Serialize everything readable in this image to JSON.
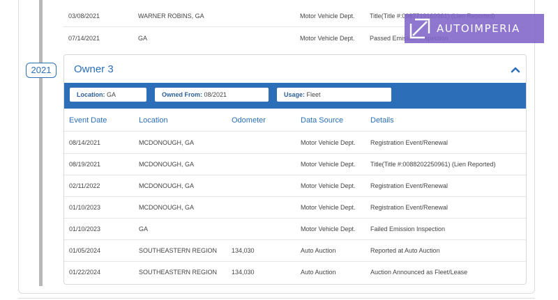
{
  "timeline": {
    "year": "2021"
  },
  "previous_rows": [
    {
      "date": "03/08/2021",
      "location": "WARNER ROBINS, GA",
      "odometer": "",
      "source": "Motor Vehicle Dept.",
      "details": "Title(Title #:0987719169961) (Lien Reported)"
    },
    {
      "date": "07/14/2021",
      "location": "GA",
      "odometer": "",
      "source": "Motor Vehicle Dept.",
      "details": "Passed Emission Inspection"
    }
  ],
  "owner": {
    "title": "Owner 3",
    "collapse_icon": "chevron-up-icon",
    "location_label": "Location:",
    "location_value": "GA",
    "owned_from_label": "Owned From:",
    "owned_from_value": "08/2021",
    "usage_label": "Usage:",
    "usage_value": "Fleet",
    "columns": [
      "Event Date",
      "Location",
      "Odometer",
      "Data Source",
      "Details"
    ],
    "rows": [
      {
        "date": "08/14/2021",
        "location": "MCDONOUGH, GA",
        "odometer": "",
        "source": "Motor Vehicle Dept.",
        "details": "Registration Event/Renewal"
      },
      {
        "date": "08/19/2021",
        "location": "MCDONOUGH, GA",
        "odometer": "",
        "source": "Motor Vehicle Dept.",
        "details": "Title(Title #:0088202250961) (Lien Reported)"
      },
      {
        "date": "02/11/2022",
        "location": "MCDONOUGH, GA",
        "odometer": "",
        "source": "Motor Vehicle Dept.",
        "details": "Registration Event/Renewal"
      },
      {
        "date": "01/10/2023",
        "location": "MCDONOUGH, GA",
        "odometer": "",
        "source": "Motor Vehicle Dept.",
        "details": "Registration Event/Renewal"
      },
      {
        "date": "01/10/2023",
        "location": "GA",
        "odometer": "",
        "source": "Motor Vehicle Dept.",
        "details": "Failed Emission Inspection"
      },
      {
        "date": "01/05/2024",
        "location": "SOUTHEASTERN REGION",
        "odometer": "134,030",
        "source": "Auto Auction",
        "details": "Reported at Auto Auction"
      },
      {
        "date": "01/22/2024",
        "location": "SOUTHEASTERN REGION",
        "odometer": "134,030",
        "source": "Auto Auction",
        "details": "Auction Announced as Fleet/Lease"
      }
    ]
  },
  "watermark": {
    "text": "AUTOIMPERIA",
    "icon": "autoimperia-logo-icon",
    "color": "#8064c8"
  },
  "colors": {
    "accent": "#2c6fb8",
    "timeline": "#b9b9b9"
  }
}
